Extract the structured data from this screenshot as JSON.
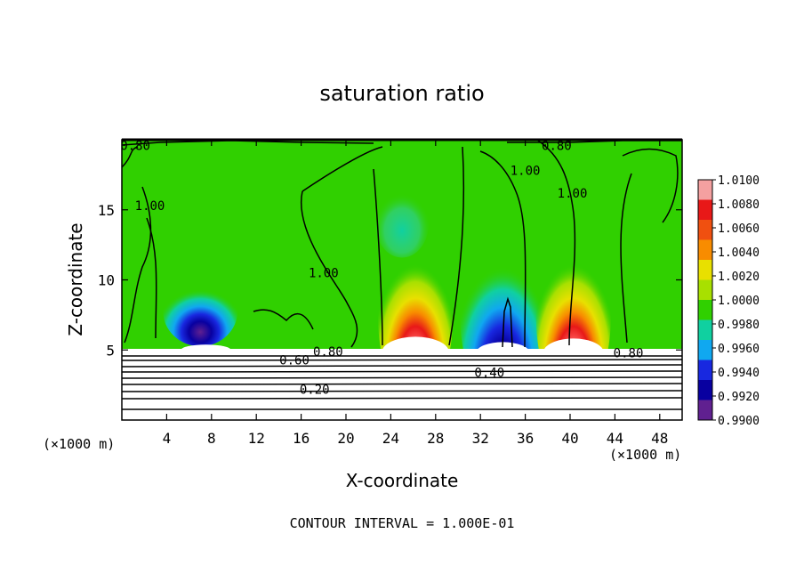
{
  "chart_data": {
    "type": "heatmap",
    "title": "saturation ratio",
    "xlabel": "X-coordinate",
    "ylabel": "Z-coordinate",
    "x_unit_left": "(×1000 m)",
    "x_unit_right": "(×1000 m)",
    "footer": "CONTOUR INTERVAL = 1.000E-01",
    "xlim": [
      0,
      50
    ],
    "ylim": [
      0,
      20
    ],
    "x_ticks": [
      "4",
      "8",
      "12",
      "16",
      "20",
      "24",
      "28",
      "32",
      "36",
      "40",
      "44",
      "48"
    ],
    "y_ticks": [
      "5",
      "10",
      "15"
    ],
    "colorbar": {
      "levels": [
        "1.0100",
        "1.0080",
        "1.0060",
        "1.0040",
        "1.0020",
        "1.0000",
        "0.9980",
        "0.9960",
        "0.9940",
        "0.9920",
        "0.9900"
      ],
      "colors": [
        "#f4a0a0",
        "#e81818",
        "#f05010",
        "#f88c00",
        "#e8e000",
        "#a8e000",
        "#30d000",
        "#10d0a0",
        "#10a8f0",
        "#1828e0",
        "#0800a0",
        "#602090"
      ]
    },
    "contour_labels": [
      {
        "text": "0.80",
        "x": 1.2,
        "z": 19.6
      },
      {
        "text": "0.80",
        "x": 38.8,
        "z": 19.6
      },
      {
        "text": "1.00",
        "x": 2.5,
        "z": 15.3
      },
      {
        "text": "1.00",
        "x": 18.0,
        "z": 10.5
      },
      {
        "text": "1.00",
        "x": 40.2,
        "z": 16.2
      },
      {
        "text": "1.00",
        "x": 36.0,
        "z": 17.8
      },
      {
        "text": "0.80",
        "x": 18.4,
        "z": 4.9
      },
      {
        "text": "0.60",
        "x": 15.4,
        "z": 4.3
      },
      {
        "text": "0.80",
        "x": 45.2,
        "z": 4.8
      },
      {
        "text": "0.40",
        "x": 32.8,
        "z": 3.4
      },
      {
        "text": "0.20",
        "x": 17.2,
        "z": 2.2
      }
    ],
    "cells": [
      {
        "x": 26.2,
        "z": 7.3,
        "value": 1.008
      },
      {
        "x": 34.0,
        "z": 7.3,
        "value": 0.992
      },
      {
        "x": 40.3,
        "z": 7.3,
        "value": 1.008
      },
      {
        "x": 7.0,
        "z": 7.8,
        "value": 0.994
      },
      {
        "x": 25.0,
        "z": 14.0,
        "value": 1.0
      }
    ]
  }
}
